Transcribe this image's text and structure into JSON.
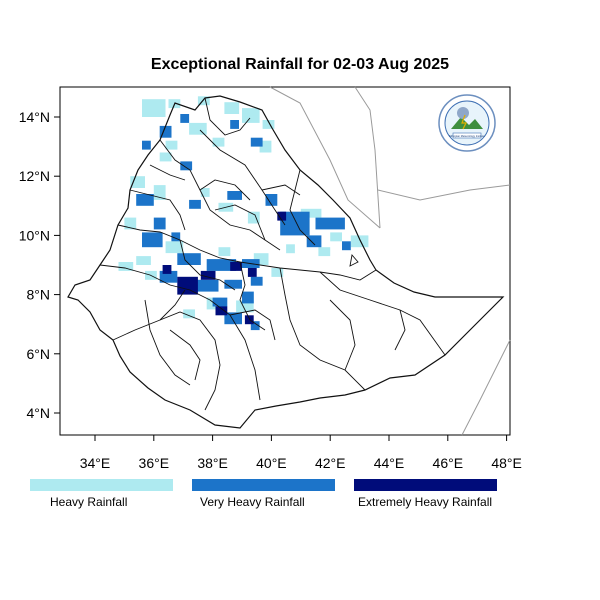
{
  "title": "Exceptional Rainfall for 02-03 Aug 2025",
  "lon_ticks": [
    "34°E",
    "36°E",
    "38°E",
    "40°E",
    "42°E",
    "44°E",
    "46°E",
    "48°E"
  ],
  "lat_ticks": [
    "4°N",
    "6°N",
    "8°N",
    "10°N",
    "12°N",
    "14°N"
  ],
  "legend": [
    {
      "label": "Heavy Rainfall",
      "color": "#aeeaf0"
    },
    {
      "label": "Very Heavy Rainfall",
      "color": "#1c74c9"
    },
    {
      "label": "Extremely Heavy Rainfall",
      "color": "#000c7a"
    }
  ],
  "colors": {
    "heavy": "#aeeaf0",
    "very_heavy": "#1c74c9",
    "extreme": "#000c7a",
    "border": "#111111",
    "neighbor_border": "#9a9a9a"
  },
  "logo": {
    "text": "Ethiopian Meteorology Institute"
  }
}
